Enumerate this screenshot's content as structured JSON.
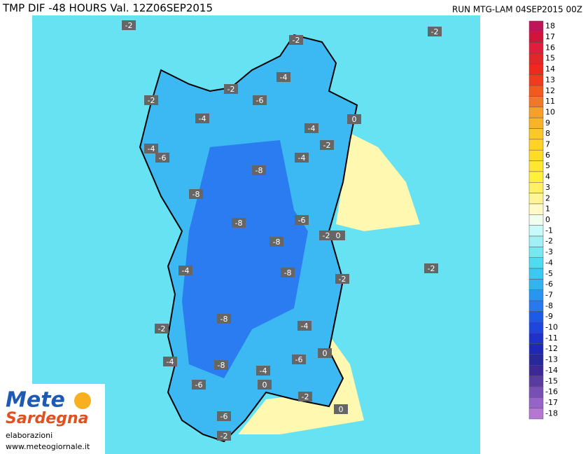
{
  "header": {
    "title": "TMP DIF -48 HOURS Val. 12Z06SEP2015",
    "run": "RUN MTG-LAM 04SEP2015 00Z"
  },
  "map": {
    "contour_labels": [
      -2,
      -2,
      -2,
      -4,
      -2,
      -6,
      -2,
      -4,
      0,
      -4,
      -2,
      -4,
      -6,
      -4,
      -8,
      -8,
      -8,
      -6,
      -2,
      0,
      -8,
      -4,
      -2,
      -8,
      -2,
      -8,
      -4,
      -2,
      0,
      -4,
      -8,
      -6,
      -4,
      -6,
      0,
      -2,
      0,
      -6,
      -2
    ]
  },
  "legend": {
    "levels": [
      18,
      17,
      16,
      15,
      14,
      13,
      12,
      11,
      10,
      9,
      8,
      7,
      6,
      5,
      4,
      3,
      2,
      1,
      0,
      -1,
      -2,
      -3,
      -4,
      -5,
      -6,
      -7,
      -8,
      -9,
      -10,
      -11,
      -12,
      -13,
      -14,
      -15,
      -16,
      -17,
      -18
    ],
    "colors": [
      "#c0145a",
      "#d0143c",
      "#e01e3c",
      "#e02828",
      "#ec2a1e",
      "#f03c1e",
      "#f05a1e",
      "#f07828",
      "#f5a028",
      "#f8b428",
      "#fac828",
      "#ffd228",
      "#ffdc28",
      "#ffe632",
      "#fff03c",
      "#fff064",
      "#fff596",
      "#fffac8",
      "#f0fff0",
      "#c8fafa",
      "#a0f0f5",
      "#78e8f0",
      "#50dcf0",
      "#3cc8f0",
      "#32b4f0",
      "#2896f0",
      "#2878f0",
      "#1e5ae6",
      "#1e46dc",
      "#1e32c8",
      "#1e28b4",
      "#28289b",
      "#3c2896",
      "#5a3ca0",
      "#7850b4",
      "#9664c8",
      "#b478d2"
    ]
  },
  "logo": {
    "brand_top": "Mete",
    "brand_bottom": "Sardegna",
    "line1": "elaborazioni",
    "line2": "www.meteogiornale.it"
  }
}
